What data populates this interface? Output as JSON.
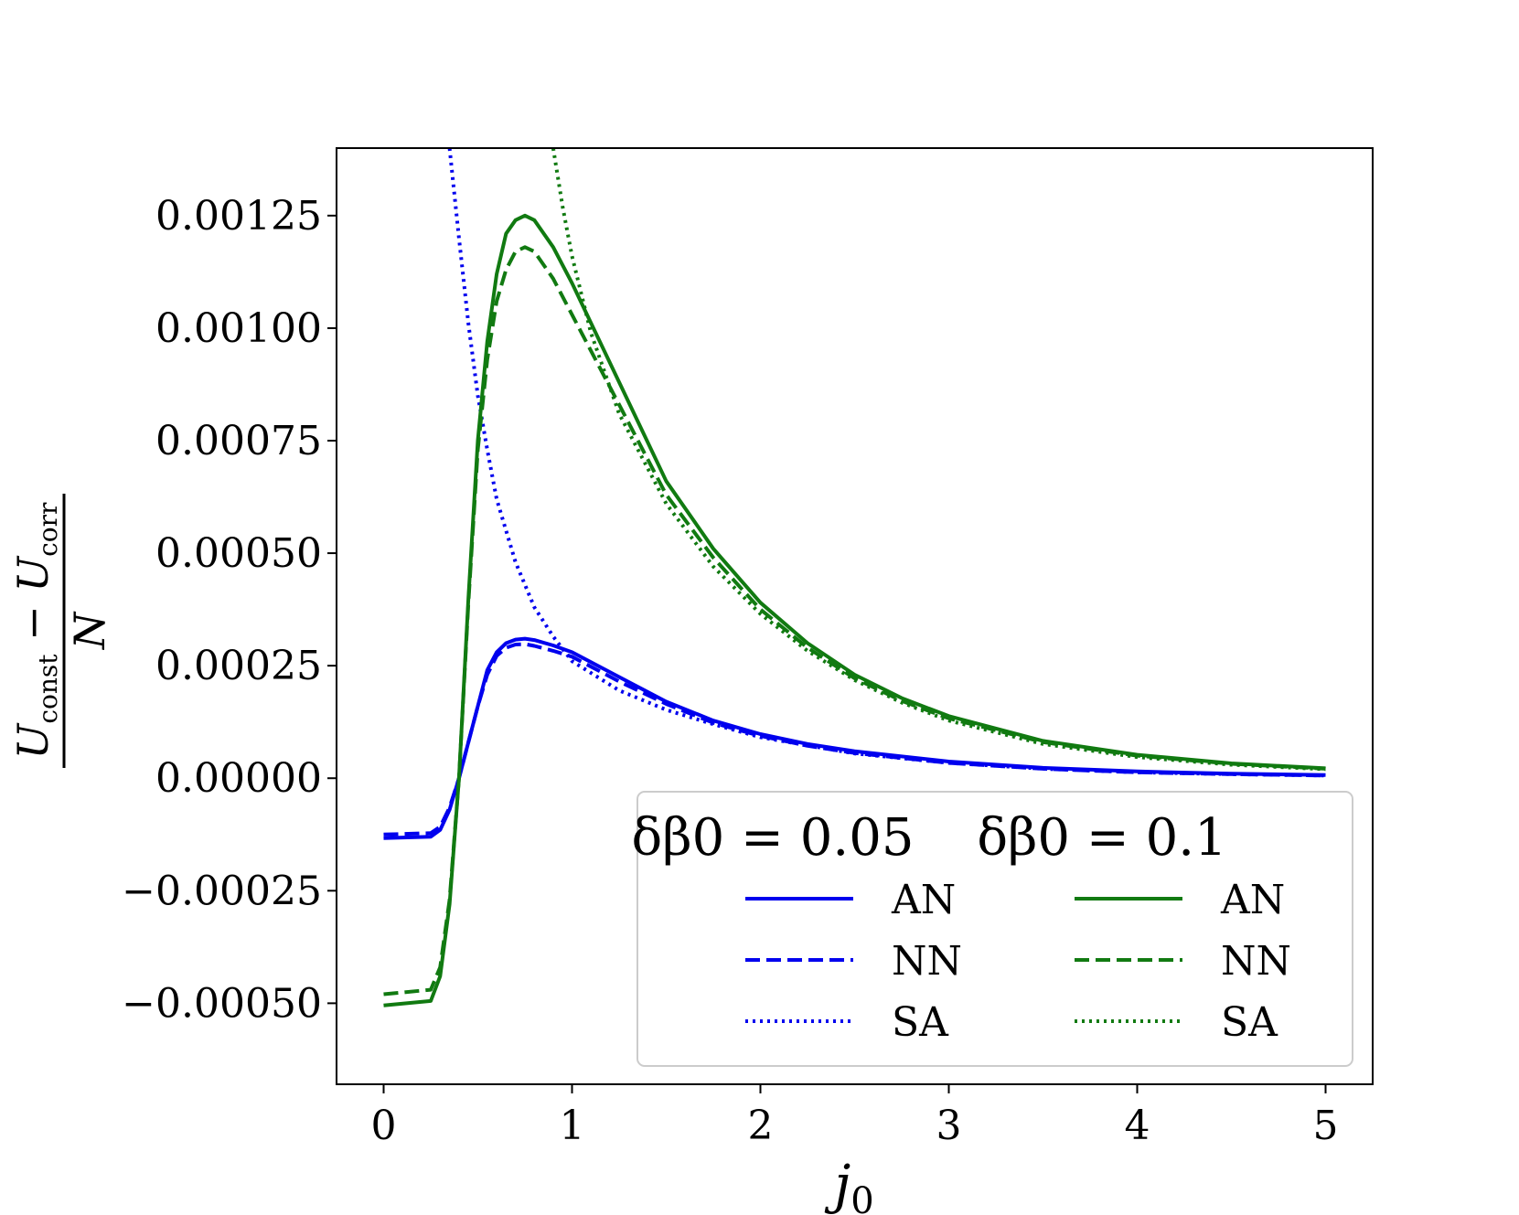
{
  "chart_data": {
    "type": "line",
    "title": "",
    "xlabel": "j0",
    "ylabel": "(U_const − U_corr) / N",
    "xlim": [
      -0.25,
      5.25
    ],
    "ylim": [
      -0.00068,
      0.0014
    ],
    "x_ticks": [
      0,
      1,
      2,
      3,
      4,
      5
    ],
    "x_tick_labels": [
      "0",
      "1",
      "2",
      "3",
      "4",
      "5"
    ],
    "y_ticks": [
      -0.0005,
      -0.00025,
      0.0,
      0.00025,
      0.0005,
      0.00075,
      0.001,
      0.00125
    ],
    "y_tick_labels": [
      "−0.00050",
      "−0.00025",
      "0.00000",
      "0.00025",
      "0.00050",
      "0.00075",
      "0.00100",
      "0.00125"
    ],
    "grid": false,
    "legend_placement": "lower-right",
    "legend": {
      "columns": [
        {
          "title": "δβ0 = 0.05",
          "color": "#0000ee",
          "entries": [
            "AN",
            "NN",
            "SA"
          ]
        },
        {
          "title": "δβ0 = 0.1",
          "color": "#117a11",
          "entries": [
            "AN",
            "NN",
            "SA"
          ]
        }
      ],
      "styles": [
        "solid",
        "dashed",
        "dotted"
      ]
    },
    "series": [
      {
        "group": "δβ0 = 0.05",
        "name": "AN",
        "color": "#0000ee",
        "style": "solid",
        "x": [
          0,
          0.25,
          0.3,
          0.35,
          0.4,
          0.45,
          0.5,
          0.55,
          0.6,
          0.65,
          0.7,
          0.75,
          0.8,
          0.9,
          1.0,
          1.25,
          1.5,
          1.75,
          2.0,
          2.25,
          2.5,
          3.0,
          3.5,
          4.0,
          4.5,
          5.0
        ],
        "y": [
          -0.000133,
          -0.00013,
          -0.000115,
          -7e-05,
          0.0,
          8e-05,
          0.00016,
          0.00024,
          0.00028,
          0.0003,
          0.000308,
          0.00031,
          0.000307,
          0.000295,
          0.00028,
          0.000225,
          0.00017,
          0.000128,
          9.8e-05,
          7.6e-05,
          6e-05,
          3.7e-05,
          2.3e-05,
          1.5e-05,
          1e-05,
          7e-06
        ]
      },
      {
        "group": "δβ0 = 0.05",
        "name": "NN",
        "color": "#0000ee",
        "style": "dashed",
        "x": [
          0,
          0.25,
          0.3,
          0.35,
          0.4,
          0.45,
          0.5,
          0.55,
          0.6,
          0.65,
          0.7,
          0.75,
          0.8,
          0.9,
          1.0,
          1.25,
          1.5,
          1.75,
          2.0,
          2.25,
          2.5,
          3.0,
          3.5,
          4.0,
          4.5,
          5.0
        ],
        "y": [
          -0.000125,
          -0.000122,
          -0.000108,
          -6.5e-05,
          0.0,
          8e-05,
          0.00016,
          0.00023,
          0.000272,
          0.00029,
          0.000297,
          0.000298,
          0.000294,
          0.000283,
          0.00027,
          0.000215,
          0.000165,
          0.000123,
          9.4e-05,
          7.2e-05,
          5.6e-05,
          3.4e-05,
          2.1e-05,
          1.3e-05,
          9e-06,
          6e-06
        ]
      },
      {
        "group": "δβ0 = 0.05",
        "name": "SA",
        "color": "#0000ee",
        "style": "dotted",
        "x": [
          0.35,
          0.4,
          0.45,
          0.5,
          0.55,
          0.6,
          0.7,
          0.8,
          0.9,
          1.0,
          1.25,
          1.5,
          1.75,
          2.0,
          2.5,
          3.0,
          3.5,
          4.0,
          4.5,
          5.0
        ],
        "y": [
          0.0014,
          0.0012,
          0.00101,
          0.00085,
          0.00073,
          0.00062,
          0.00048,
          0.00038,
          0.000315,
          0.00026,
          0.000195,
          0.000152,
          0.00012,
          9.1e-05,
          5.5e-05,
          3.4e-05,
          2.1e-05,
          1.3e-05,
          9e-06,
          6e-06
        ]
      },
      {
        "group": "δβ0 = 0.1",
        "name": "AN",
        "color": "#117a11",
        "style": "solid",
        "x": [
          0,
          0.25,
          0.3,
          0.35,
          0.4,
          0.45,
          0.5,
          0.55,
          0.6,
          0.65,
          0.7,
          0.75,
          0.8,
          0.9,
          1.0,
          1.25,
          1.5,
          1.75,
          2.0,
          2.25,
          2.5,
          2.75,
          3.0,
          3.5,
          4.0,
          4.5,
          5.0
        ],
        "y": [
          -0.000505,
          -0.000495,
          -0.00044,
          -0.00028,
          0.0,
          0.0004,
          0.00075,
          0.00097,
          0.00112,
          0.00121,
          0.00124,
          0.00125,
          0.00124,
          0.00118,
          0.0011,
          0.00088,
          0.00066,
          0.00051,
          0.00039,
          0.0003,
          0.00023,
          0.000178,
          0.000138,
          8.3e-05,
          5.2e-05,
          3.3e-05,
          2.2e-05
        ]
      },
      {
        "group": "δβ0 = 0.1",
        "name": "NN",
        "color": "#117a11",
        "style": "dashed",
        "x": [
          0,
          0.25,
          0.3,
          0.35,
          0.4,
          0.45,
          0.5,
          0.55,
          0.6,
          0.65,
          0.7,
          0.75,
          0.8,
          0.9,
          1.0,
          1.25,
          1.5,
          1.75,
          2.0,
          2.25,
          2.5,
          2.75,
          3.0,
          3.5,
          4.0,
          4.5,
          5.0
        ],
        "y": [
          -0.00048,
          -0.00047,
          -0.00042,
          -0.00027,
          0.0,
          0.00039,
          0.00073,
          0.00093,
          0.00106,
          0.00113,
          0.00117,
          0.00118,
          0.00117,
          0.00111,
          0.00103,
          0.00083,
          0.00063,
          0.00049,
          0.000375,
          0.00029,
          0.000222,
          0.000172,
          0.000133,
          8e-05,
          5e-05,
          3.2e-05,
          2.1e-05
        ]
      },
      {
        "group": "δβ0 = 0.1",
        "name": "SA",
        "color": "#117a11",
        "style": "dotted",
        "x": [
          0.9,
          0.95,
          1.0,
          1.1,
          1.25,
          1.5,
          1.75,
          2.0,
          2.25,
          2.5,
          2.75,
          3.0,
          3.5,
          4.0,
          4.5,
          5.0
        ],
        "y": [
          0.0014,
          0.00127,
          0.00116,
          0.00099,
          0.00081,
          0.00061,
          0.00047,
          0.000365,
          0.000283,
          0.000218,
          0.000168,
          0.000128,
          7.6e-05,
          4.7e-05,
          3e-05,
          2e-05
        ]
      }
    ]
  }
}
